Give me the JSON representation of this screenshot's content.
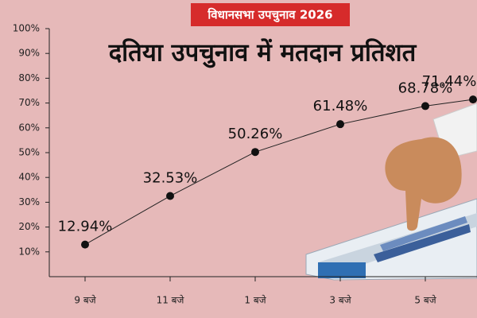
{
  "badge": "विधानसभा उपचुनाव 2026",
  "chart_data": {
    "type": "line",
    "title": "दतिया उपचुनाव में मतदान प्रतिशत",
    "categories": [
      "9 बजे",
      "11 बजे",
      "1 बजे",
      "3 बजे",
      "5 बजे",
      null
    ],
    "values": [
      12.94,
      32.53,
      50.26,
      61.48,
      68.78,
      71.44
    ],
    "value_labels": [
      "12.94%",
      "32.53%",
      "50.26%",
      "61.48%",
      "68.78%",
      "71.44%"
    ],
    "color": "#222222",
    "ylim": [
      0,
      100
    ],
    "yticks": [
      {
        "value": 10,
        "label": "10%"
      },
      {
        "value": 20,
        "label": "20%"
      },
      {
        "value": 30,
        "label": "30%"
      },
      {
        "value": 40,
        "label": "40%"
      },
      {
        "value": 50,
        "label": "50%"
      },
      {
        "value": 60,
        "label": "60%"
      },
      {
        "value": 70,
        "label": "70%"
      },
      {
        "value": 80,
        "label": "80%"
      },
      {
        "value": 90,
        "label": "90%"
      },
      {
        "value": 100,
        "label": "100%"
      }
    ]
  }
}
